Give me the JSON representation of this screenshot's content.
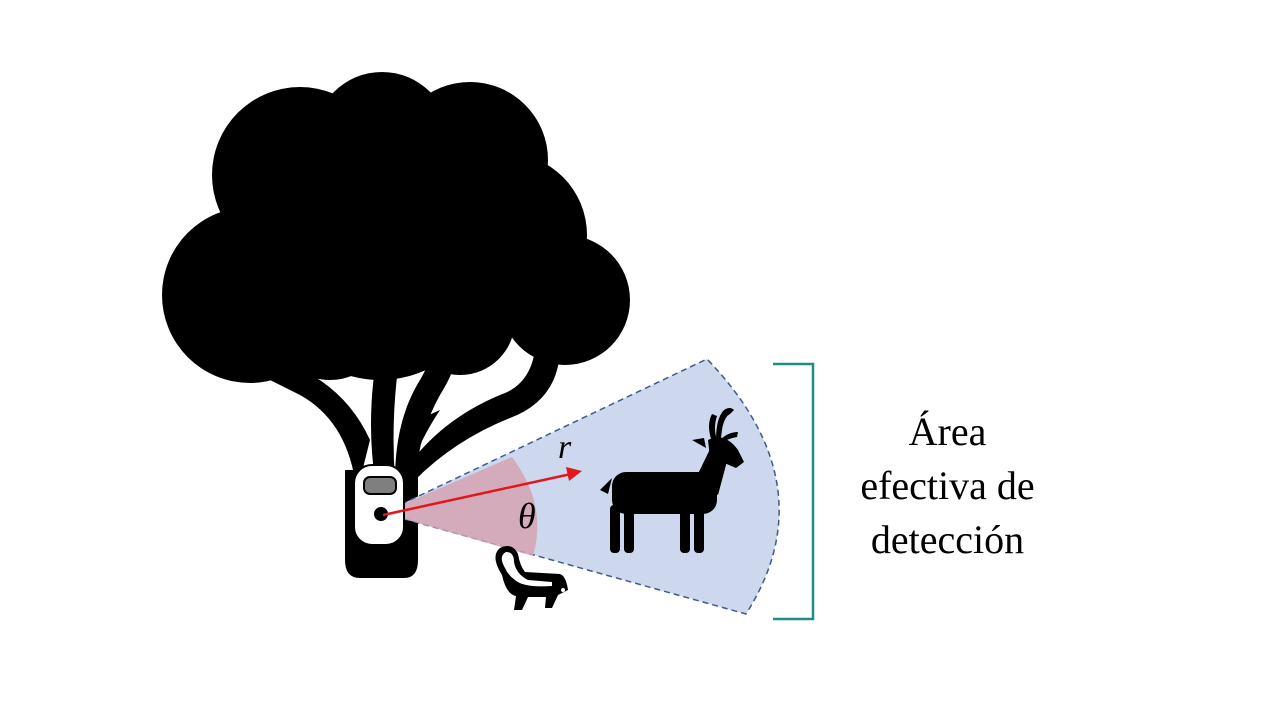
{
  "diagram": {
    "labels": {
      "radius": "r",
      "angle": "θ",
      "area_line1": "Área",
      "area_line2": "efectiva de",
      "area_line3": "detección"
    },
    "colors": {
      "detection_zone_fill": "#cdd8ef",
      "detection_zone_stroke": "#3f5b8c",
      "angle_sector_fill": "#d5a3b2",
      "radius_arrow": "#e3161b",
      "bracket": "#1f8c8c",
      "silhouette": "#000000",
      "camera_body": "#ffffff",
      "camera_window": "#7f7f7f"
    },
    "icons": [
      "tree-icon",
      "camera-trap-icon",
      "deer-icon",
      "skunk-icon"
    ]
  }
}
